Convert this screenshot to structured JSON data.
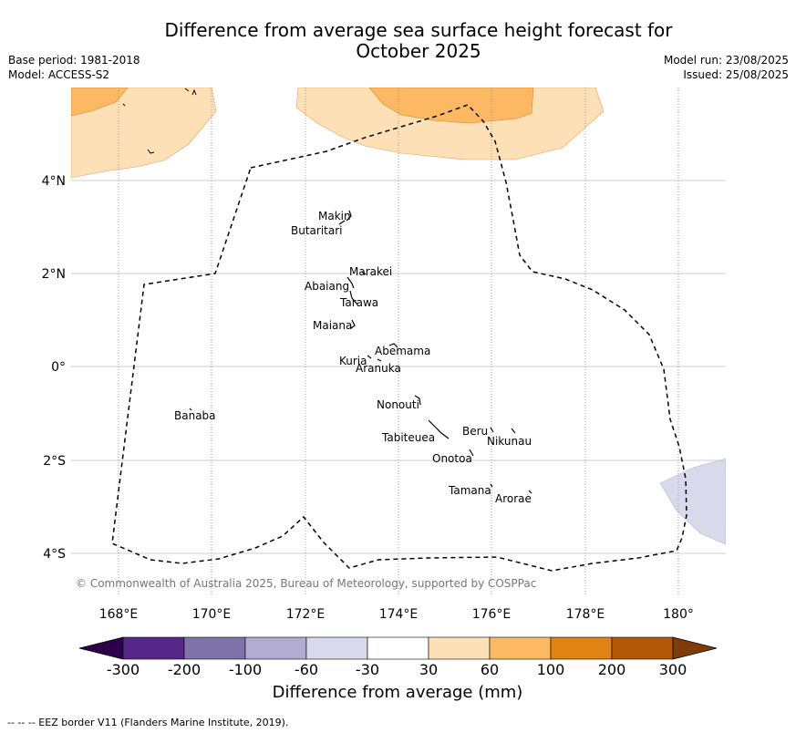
{
  "title": "Difference from average sea surface height forecast for October 2025",
  "title_lines": [
    "Difference from average sea surface height forecast for",
    "October 2025"
  ],
  "base_period": "Base period: 1981-2018",
  "model": "Model: ACCESS-S2",
  "model_run": "Model run: 23/08/2025",
  "issued": "Issued: 25/08/2025",
  "copyright": "© Commonwealth of Australia 2025, Bureau of Meteorology, supported by COSPPac",
  "lat_ticks": [
    "4°N",
    "2°N",
    "0°",
    "2°S",
    "4°S"
  ],
  "lon_ticks": [
    "168°E",
    "170°E",
    "172°E",
    "174°E",
    "176°E",
    "178°E",
    "180°"
  ],
  "islands": [
    "Makin",
    "Butaritari",
    "Marakei",
    "Abaiang",
    "Tarawa",
    "Maiana",
    "Abemama",
    "Kuria",
    "Aranuka",
    "Nonouti",
    "Banaba",
    "Tabiteuea",
    "Beru",
    "Nikunau",
    "Onotoa",
    "Tamana",
    "Arorae"
  ],
  "colorbar": {
    "ticks": [
      "-300",
      "-200",
      "-100",
      "-60",
      "-30",
      "30",
      "60",
      "100",
      "200",
      "300"
    ],
    "colors": [
      "#542788",
      "#8073ac",
      "#b2abd2",
      "#d8daeb",
      "#ffffff",
      "#fee0b6",
      "#fdb863",
      "#e08214",
      "#b35806"
    ],
    "under_color": "#2d004b",
    "over_color": "#7f3b08",
    "label": "Difference from average (mm)"
  },
  "footer": "--  --  -- EEZ border V11 (Flanders Marine Institute, 2019).",
  "colors": {
    "light_orange": "#fee0b6",
    "orange": "#fdb863",
    "light_purple": "#d8daeb",
    "grid": "#cccccc"
  }
}
